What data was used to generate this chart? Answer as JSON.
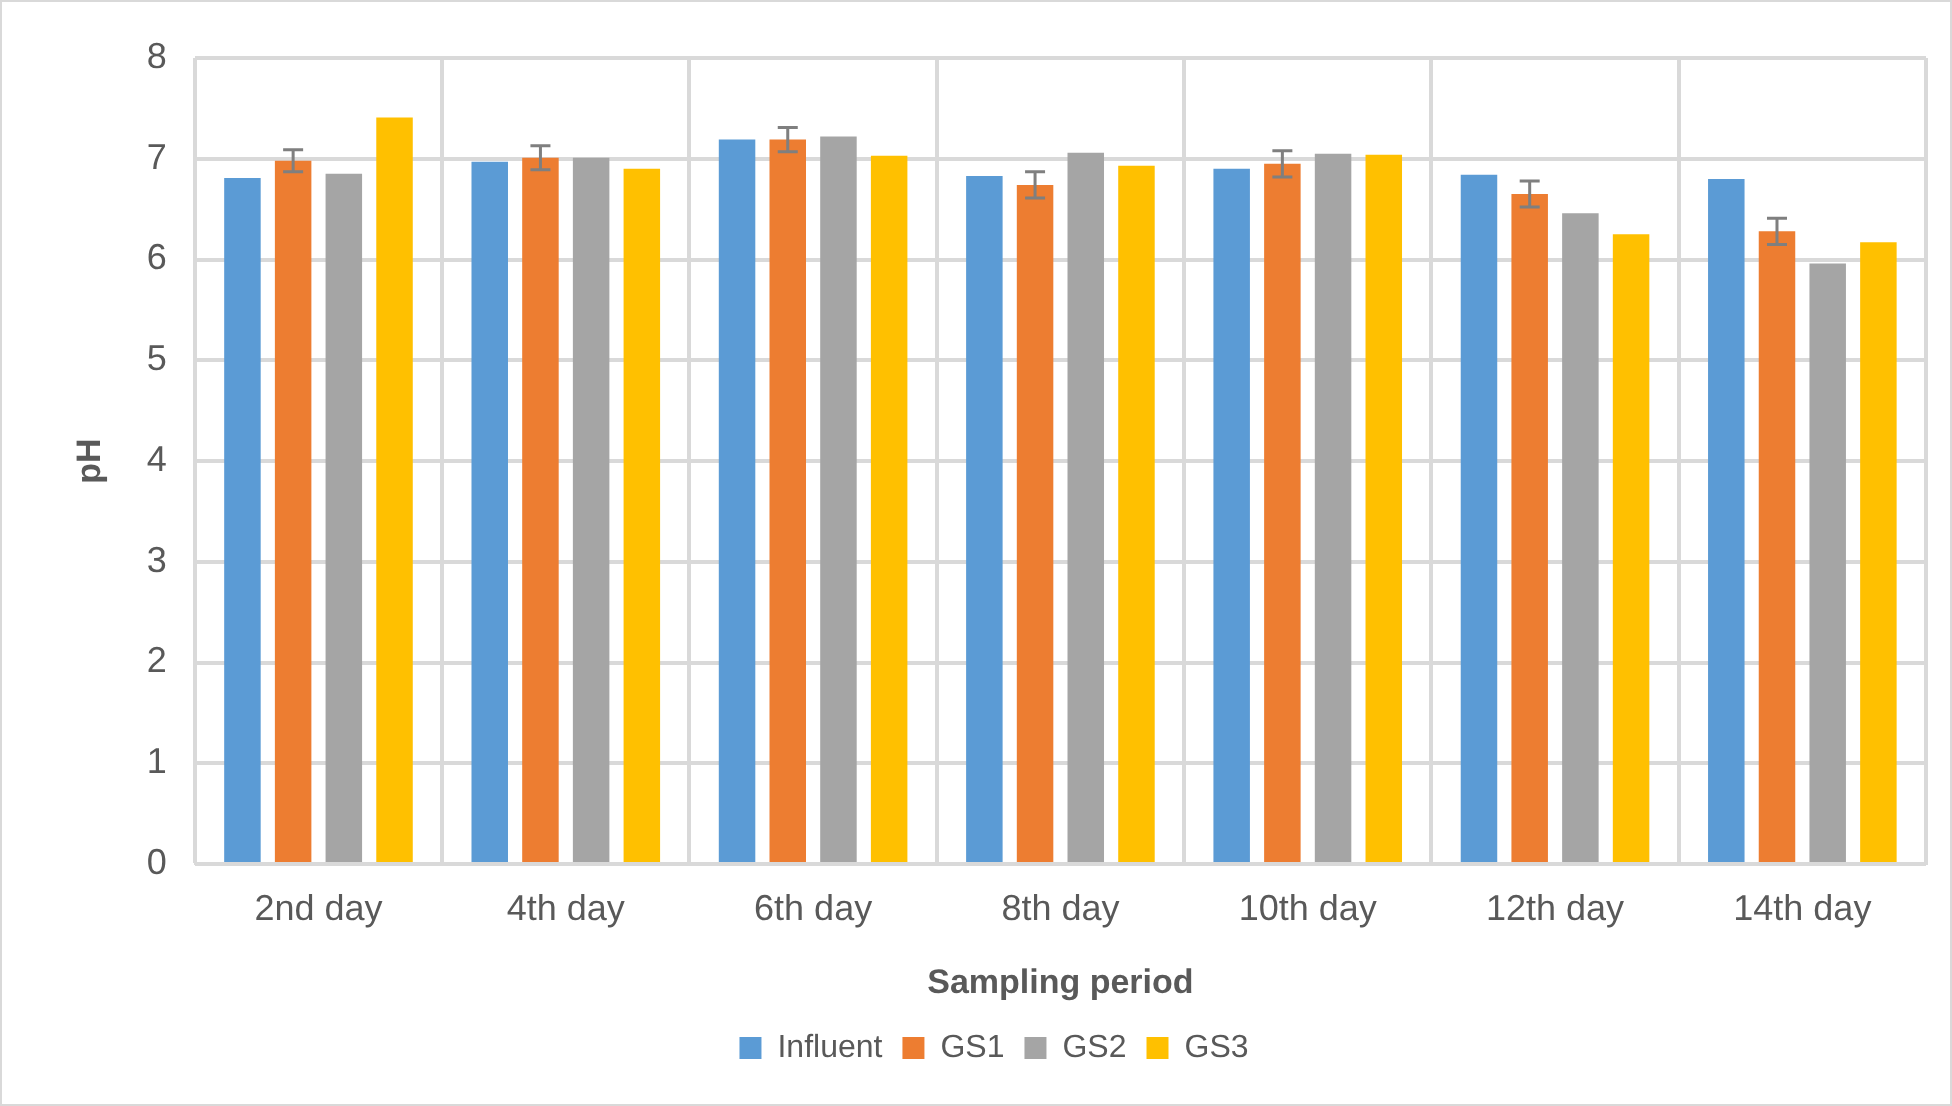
{
  "chart_data": {
    "type": "bar",
    "xlabel": "Sampling period",
    "ylabel": "pH",
    "categories": [
      "2nd day",
      "4th day",
      "6th day",
      "8th day",
      "10th day",
      "12th day",
      "14th day"
    ],
    "series": [
      {
        "name": "Influent",
        "color": "#5b9bd5",
        "values": [
          6.81,
          6.97,
          7.19,
          6.83,
          6.9,
          6.84,
          6.8
        ]
      },
      {
        "name": "GS1",
        "color": "#ed7d31",
        "values": [
          6.98,
          7.01,
          7.19,
          6.74,
          6.95,
          6.65,
          6.28
        ],
        "errors": [
          0.11,
          0.12,
          0.12,
          0.13,
          0.13,
          0.13,
          0.13
        ]
      },
      {
        "name": "GS2",
        "color": "#a5a5a5",
        "values": [
          6.85,
          7.01,
          7.22,
          7.06,
          7.05,
          6.46,
          5.96
        ]
      },
      {
        "name": "GS3",
        "color": "#ffc000",
        "values": [
          7.41,
          6.9,
          7.03,
          6.93,
          7.04,
          6.25,
          6.17
        ]
      }
    ],
    "ylim": [
      0,
      8
    ],
    "yticks": [
      0,
      1,
      2,
      3,
      4,
      5,
      6,
      7,
      8
    ],
    "grid": true,
    "legend": "bottom"
  }
}
